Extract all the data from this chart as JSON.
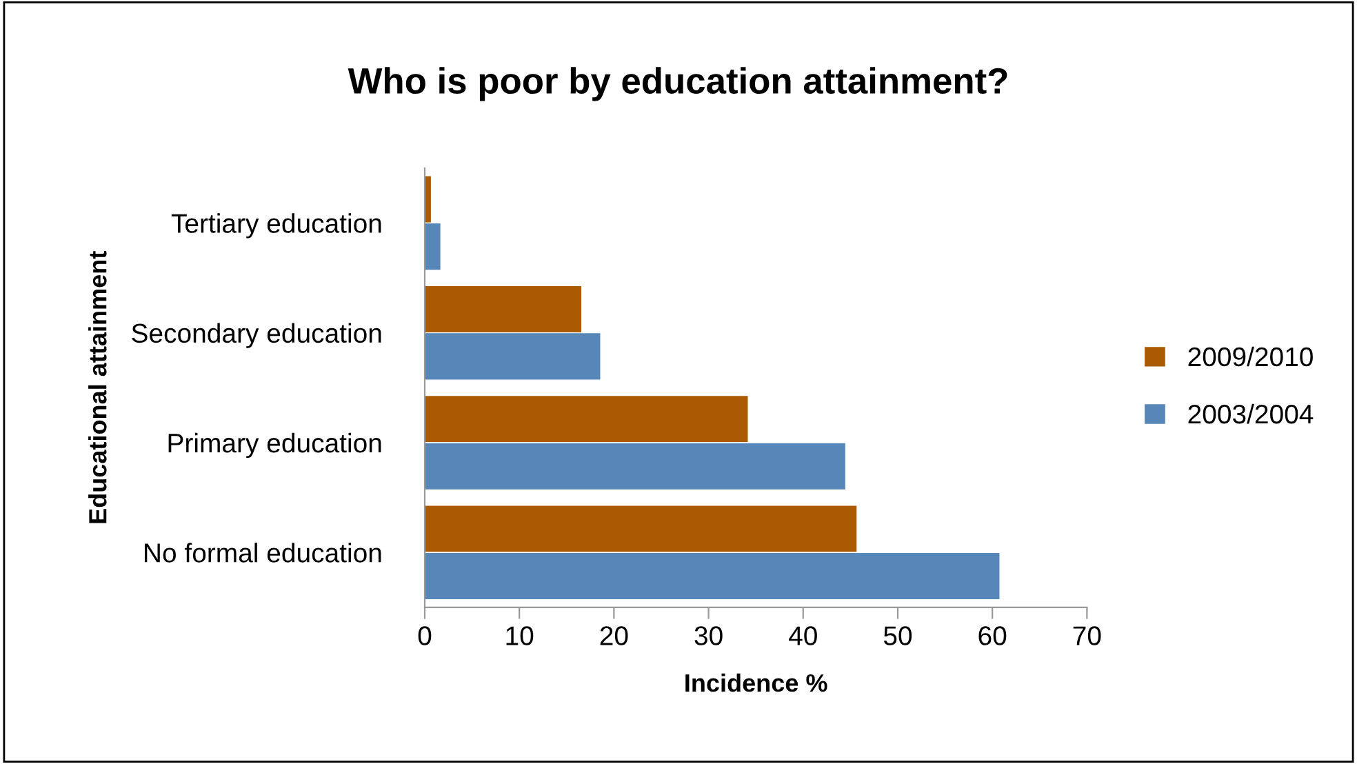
{
  "chart_data": {
    "type": "bar",
    "orientation": "horizontal",
    "title": "Who is poor by education attainment?",
    "xlabel": "Incidence %",
    "ylabel": "Educational attainment",
    "categories": [
      "Tertiary education",
      "Secondary education",
      "Primary education",
      "No formal education"
    ],
    "series": [
      {
        "name": "2009/2010",
        "color": "#aa5a00",
        "values": [
          0.7,
          16.6,
          34.2,
          45.7
        ]
      },
      {
        "name": "2003/2004",
        "color": "#5687b8",
        "values": [
          1.7,
          18.6,
          44.5,
          60.8
        ]
      }
    ],
    "xlim": [
      0,
      70
    ],
    "xticks": [
      0,
      10,
      20,
      30,
      40,
      50,
      60,
      70
    ],
    "grid": false,
    "legend": "right"
  }
}
